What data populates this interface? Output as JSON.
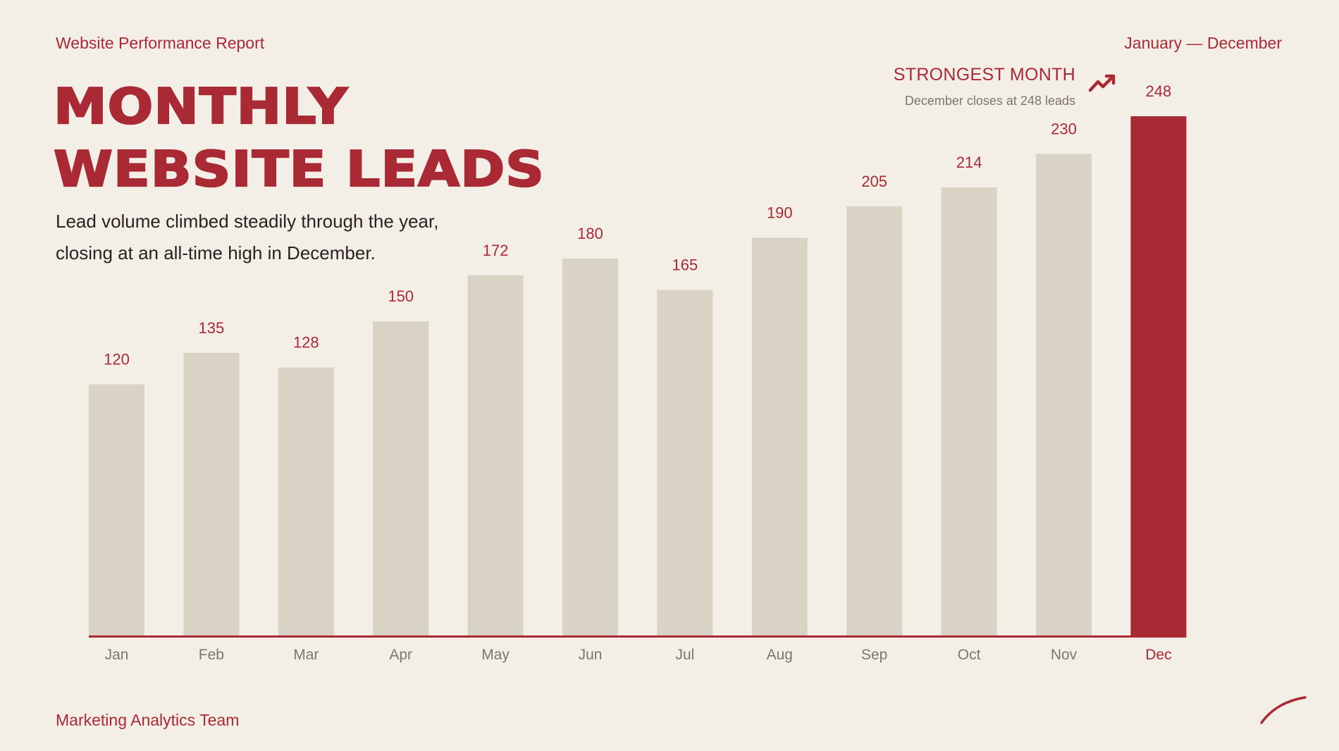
{
  "header": {
    "report_title": "Website Performance Report",
    "period": "January — December"
  },
  "headline": {
    "line1": "MONTHLY",
    "line2": "WEBSITE LEADS"
  },
  "subtitle": {
    "line1": "Lead volume climbed steadily through the year,",
    "line2": "closing at an all-time high in December."
  },
  "callout": {
    "title": "STRONGEST MONTH",
    "subtitle": "December closes at 248 leads",
    "icon": "trending-up-icon"
  },
  "footer": {
    "team": "Marketing Analytics Team",
    "decoration_icon": "swoosh-icon"
  },
  "colors": {
    "background": "#f3efe7",
    "accent": "#a92935",
    "bar_default": "#d9d3c5",
    "axis_label": "#7d7670"
  },
  "chart_data": {
    "type": "bar",
    "categories": [
      "Jan",
      "Feb",
      "Mar",
      "Apr",
      "May",
      "Jun",
      "Jul",
      "Aug",
      "Sep",
      "Oct",
      "Nov",
      "Dec"
    ],
    "values": [
      120,
      135,
      128,
      150,
      172,
      180,
      165,
      190,
      205,
      214,
      230,
      248
    ],
    "highlight_category": "Dec",
    "data_labels": true,
    "grid": false,
    "ylim": [
      0,
      248
    ],
    "title": "",
    "xlabel": "",
    "ylabel": ""
  }
}
